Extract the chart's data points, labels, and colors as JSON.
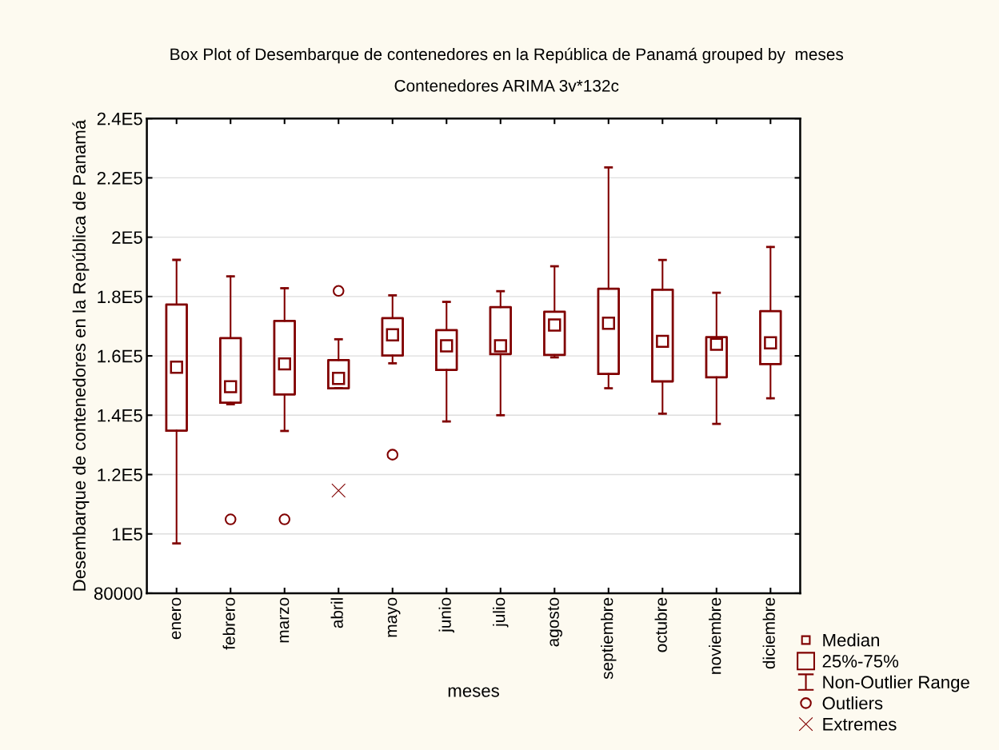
{
  "chart_data": {
    "type": "box",
    "title": "Box Plot of Desembarque de contenedores en la República de Panamá grouped by  meses",
    "subtitle": "Contenedores ARIMA 3v*132c",
    "xlabel": "meses",
    "ylabel": "Desembarque de contenedores en la República de Panamá",
    "categories": [
      "enero",
      "febrero",
      "marzo",
      "abril",
      "mayo",
      "junio",
      "julio",
      "agosto",
      "septiembre",
      "octubre",
      "noviembre",
      "diciembre"
    ],
    "series": [
      {
        "color": "#800000",
        "boxes": [
          {
            "low": 96770,
            "q1": 134800,
            "median": 156200,
            "q3": 177300,
            "high": 192360
          },
          {
            "low": 143700,
            "q1": 144200,
            "median": 149600,
            "q3": 166000,
            "high": 186800
          },
          {
            "low": 134700,
            "q1": 147000,
            "median": 157300,
            "q3": 171800,
            "high": 182800
          },
          {
            "low": 149100,
            "q1": 149100,
            "median": 152400,
            "q3": 158600,
            "high": 165600
          },
          {
            "low": 157500,
            "q1": 160100,
            "median": 167100,
            "q3": 172700,
            "high": 180400
          },
          {
            "low": 137900,
            "q1": 155300,
            "median": 163400,
            "q3": 168700,
            "high": 178200
          },
          {
            "low": 140000,
            "q1": 160600,
            "median": 163400,
            "q3": 176400,
            "high": 181800
          },
          {
            "low": 159500,
            "q1": 160300,
            "median": 170400,
            "q3": 174900,
            "high": 190200
          },
          {
            "low": 149100,
            "q1": 153900,
            "median": 171000,
            "q3": 182600,
            "high": 223500
          },
          {
            "low": 140500,
            "q1": 151400,
            "median": 164900,
            "q3": 182300,
            "high": 192300
          },
          {
            "low": 137100,
            "q1": 152800,
            "median": 163900,
            "q3": 166300,
            "high": 181300
          },
          {
            "low": 145700,
            "q1": 157200,
            "median": 164400,
            "q3": 175100,
            "high": 196700
          }
        ]
      },
      {
        "type": "scatter",
        "name": "Outliers",
        "color": "#800000",
        "marker": "circle",
        "x": [
          "febrero",
          "marzo",
          "abril",
          "mayo"
        ],
        "values": [
          104900,
          104900,
          181900,
          126700
        ]
      },
      {
        "type": "scatter",
        "name": "Extremes",
        "color": "#800000",
        "marker": "cross",
        "x": [
          "abril"
        ],
        "values": [
          114600
        ]
      }
    ],
    "annotations": [
      "Median",
      "25%-75%",
      "Non-Outlier Range"
    ],
    "ylim": [
      80000,
      240000
    ],
    "yticks": [
      80000,
      {
        "value": 100000,
        "label": "1E5"
      },
      {
        "value": 120000,
        "label": "1.2E5"
      },
      {
        "value": 140000,
        "label": "1.4E5"
      },
      {
        "value": 160000,
        "label": "1.6E5"
      },
      {
        "value": 180000,
        "label": "1.8E5"
      },
      {
        "value": 200000,
        "label": "2E5"
      },
      {
        "value": 220000,
        "label": "2.2E5"
      },
      {
        "value": 240000,
        "label": "2.4E5"
      }
    ],
    "grid": "y",
    "legend": "bottom right"
  }
}
